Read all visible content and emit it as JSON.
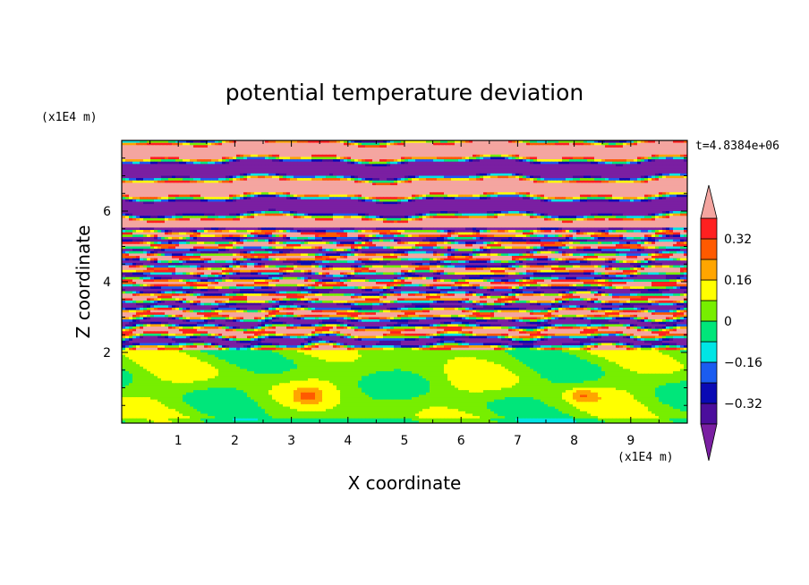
{
  "chart_data": {
    "type": "heatmap",
    "title": "potential temperature deviation",
    "xlabel": "X coordinate",
    "ylabel": "Z coordinate",
    "x_unit_label": "(x1E4 m)",
    "y_unit_label": "(x1E4 m)",
    "time_label": "t=4.8384e+06",
    "xlim": [
      0,
      10
    ],
    "ylim": [
      0,
      8
    ],
    "x_ticks": [
      1,
      2,
      3,
      4,
      5,
      6,
      7,
      8,
      9
    ],
    "y_ticks": [
      2,
      4,
      6
    ],
    "x_tick_labels": [
      "1",
      "2",
      "3",
      "4",
      "5",
      "6",
      "7",
      "8",
      "9"
    ],
    "y_tick_labels": [
      "2",
      "4",
      "6"
    ],
    "colorbar": {
      "levels": [
        -0.4,
        -0.32,
        -0.24,
        -0.16,
        -0.08,
        0,
        0.08,
        0.16,
        0.24,
        0.32,
        0.4
      ],
      "tick_values": [
        0.32,
        0.16,
        0,
        -0.16,
        -0.32
      ],
      "tick_labels": [
        "0.32",
        "0.16",
        "0",
        "−0.16",
        "−0.32"
      ],
      "colors": [
        "#7a1fa2",
        "#4b0e9c",
        "#0a0ab4",
        "#1a5cf0",
        "#00e5e5",
        "#00e67a",
        "#77ee00",
        "#ffff00",
        "#ffa500",
        "#ff5a00",
        "#ff2020",
        "#f4a5a0"
      ],
      "extend": "both"
    },
    "regions": [
      {
        "z_range": [
          0,
          2.05
        ],
        "description_values": "near zero (green/light-green), with two small positive cells (~0.16) near x=3.3 and x=8.1"
      },
      {
        "z_range": [
          2.05,
          5.5
        ],
        "description_values": "alternating thin horizontal layers spanning full range -0.4 to 0.4"
      },
      {
        "z_range": [
          5.5,
          8
        ],
        "description_values": "broad alternating bands of strong positive (>0.4) and strong negative (<-0.4)"
      }
    ]
  }
}
